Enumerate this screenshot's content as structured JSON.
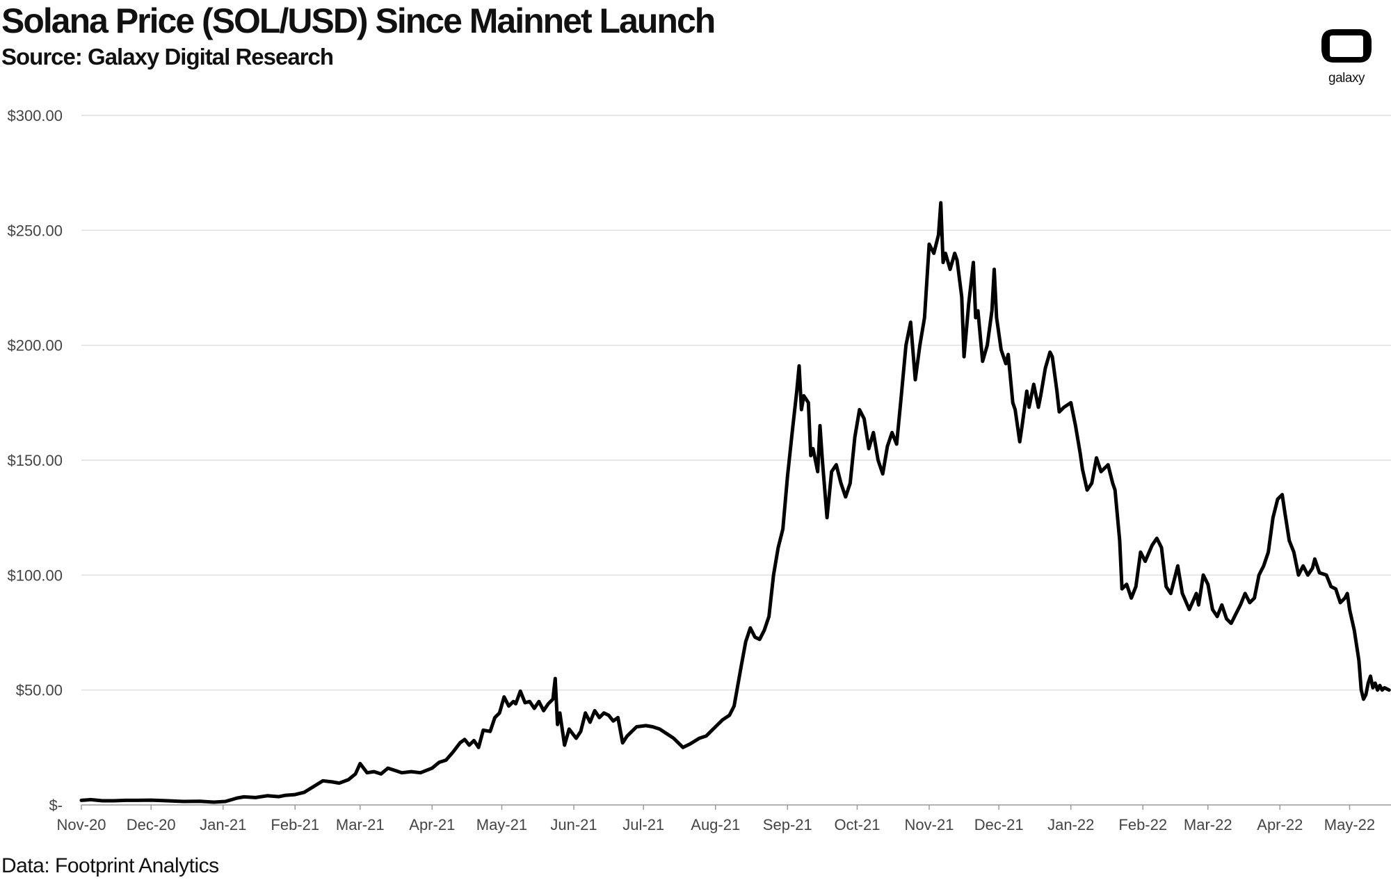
{
  "header": {
    "title": "Solana Price (SOL/USD) Since Mainnet Launch",
    "subtitle": "Source: Galaxy Digital Research"
  },
  "footer": {
    "note": "Data: Footprint Analytics"
  },
  "logo": {
    "text": "galaxy",
    "icon": "galaxy-logo-icon"
  },
  "colors": {
    "line": "#000000",
    "grid": "#d8d8d8",
    "text": "#444444"
  },
  "chart_data": {
    "type": "line",
    "title": "Solana Price (SOL/USD) Since Mainnet Launch",
    "subtitle": "Source: Galaxy Digital Research",
    "xlabel": "",
    "ylabel": "",
    "ylim": [
      0,
      300
    ],
    "grid": true,
    "legend": "none",
    "y_ticks": [
      {
        "value": 0,
        "label": "$-"
      },
      {
        "value": 50,
        "label": "$50.00"
      },
      {
        "value": 100,
        "label": "$100.00"
      },
      {
        "value": 150,
        "label": "$150.00"
      },
      {
        "value": 200,
        "label": "$200.00"
      },
      {
        "value": 250,
        "label": "$250.00"
      },
      {
        "value": 300,
        "label": "$300.00"
      }
    ],
    "x_ticks": [
      {
        "date": "2020-11-01",
        "label": "Nov-20"
      },
      {
        "date": "2020-12-01",
        "label": "Dec-20"
      },
      {
        "date": "2021-01-01",
        "label": "Jan-21"
      },
      {
        "date": "2021-02-01",
        "label": "Feb-21"
      },
      {
        "date": "2021-03-01",
        "label": "Mar-21"
      },
      {
        "date": "2021-04-01",
        "label": "Apr-21"
      },
      {
        "date": "2021-05-01",
        "label": "May-21"
      },
      {
        "date": "2021-06-01",
        "label": "Jun-21"
      },
      {
        "date": "2021-07-01",
        "label": "Jul-21"
      },
      {
        "date": "2021-08-01",
        "label": "Aug-21"
      },
      {
        "date": "2021-09-01",
        "label": "Sep-21"
      },
      {
        "date": "2021-10-01",
        "label": "Oct-21"
      },
      {
        "date": "2021-11-01",
        "label": "Nov-21"
      },
      {
        "date": "2021-12-01",
        "label": "Dec-21"
      },
      {
        "date": "2022-01-01",
        "label": "Jan-22"
      },
      {
        "date": "2022-02-01",
        "label": "Feb-22"
      },
      {
        "date": "2022-03-01",
        "label": "Mar-22"
      },
      {
        "date": "2022-04-01",
        "label": "Apr-22"
      },
      {
        "date": "2022-05-01",
        "label": "May-22"
      }
    ],
    "x_range": [
      "2020-11-01",
      "2022-05-18"
    ],
    "series": [
      {
        "points": [
          [
            "2020-11-01",
            2.0
          ],
          [
            "2020-11-05",
            2.3
          ],
          [
            "2020-11-10",
            1.8
          ],
          [
            "2020-11-15",
            1.8
          ],
          [
            "2020-11-20",
            2.0
          ],
          [
            "2020-11-25",
            2.0
          ],
          [
            "2020-12-01",
            2.1
          ],
          [
            "2020-12-08",
            1.8
          ],
          [
            "2020-12-15",
            1.5
          ],
          [
            "2020-12-22",
            1.6
          ],
          [
            "2020-12-28",
            1.2
          ],
          [
            "2021-01-02",
            1.5
          ],
          [
            "2021-01-07",
            3.0
          ],
          [
            "2021-01-10",
            3.5
          ],
          [
            "2021-01-15",
            3.2
          ],
          [
            "2021-01-20",
            4.0
          ],
          [
            "2021-01-25",
            3.6
          ],
          [
            "2021-01-28",
            4.2
          ],
          [
            "2021-02-01",
            4.5
          ],
          [
            "2021-02-05",
            5.5
          ],
          [
            "2021-02-09",
            8.0
          ],
          [
            "2021-02-13",
            10.5
          ],
          [
            "2021-02-17",
            10.0
          ],
          [
            "2021-02-20",
            9.5
          ],
          [
            "2021-02-24",
            11.0
          ],
          [
            "2021-02-27",
            13.5
          ],
          [
            "2021-03-01",
            18.0
          ],
          [
            "2021-03-04",
            14.0
          ],
          [
            "2021-03-07",
            14.5
          ],
          [
            "2021-03-10",
            13.5
          ],
          [
            "2021-03-13",
            16.0
          ],
          [
            "2021-03-16",
            15.0
          ],
          [
            "2021-03-19",
            14.0
          ],
          [
            "2021-03-23",
            14.5
          ],
          [
            "2021-03-27",
            14.0
          ],
          [
            "2021-04-01",
            16.0
          ],
          [
            "2021-04-04",
            18.5
          ],
          [
            "2021-04-07",
            19.5
          ],
          [
            "2021-04-10",
            23.0
          ],
          [
            "2021-04-13",
            27.0
          ],
          [
            "2021-04-15",
            28.5
          ],
          [
            "2021-04-17",
            26.0
          ],
          [
            "2021-04-19",
            28.0
          ],
          [
            "2021-04-21",
            25.0
          ],
          [
            "2021-04-23",
            32.5
          ],
          [
            "2021-04-26",
            32.0
          ],
          [
            "2021-04-28",
            38.0
          ],
          [
            "2021-04-30",
            40.0
          ],
          [
            "2021-05-02",
            47.0
          ],
          [
            "2021-05-04",
            43.0
          ],
          [
            "2021-05-06",
            45.0
          ],
          [
            "2021-05-07",
            44.0
          ],
          [
            "2021-05-09",
            49.5
          ],
          [
            "2021-05-11",
            44.5
          ],
          [
            "2021-05-13",
            45.0
          ],
          [
            "2021-05-15",
            42.0
          ],
          [
            "2021-05-17",
            45.0
          ],
          [
            "2021-05-19",
            41.0
          ],
          [
            "2021-05-21",
            44.0
          ],
          [
            "2021-05-23",
            46.0
          ],
          [
            "2021-05-24",
            55.0
          ],
          [
            "2021-05-25",
            35.0
          ],
          [
            "2021-05-26",
            40.0
          ],
          [
            "2021-05-28",
            26.0
          ],
          [
            "2021-05-30",
            33.0
          ],
          [
            "2021-06-02",
            29.0
          ],
          [
            "2021-06-04",
            32.0
          ],
          [
            "2021-06-06",
            40.0
          ],
          [
            "2021-06-08",
            36.0
          ],
          [
            "2021-06-10",
            41.0
          ],
          [
            "2021-06-12",
            38.0
          ],
          [
            "2021-06-14",
            40.0
          ],
          [
            "2021-06-16",
            39.0
          ],
          [
            "2021-06-18",
            36.5
          ],
          [
            "2021-06-20",
            38.0
          ],
          [
            "2021-06-22",
            27.0
          ],
          [
            "2021-06-24",
            30.0
          ],
          [
            "2021-06-26",
            32.0
          ],
          [
            "2021-06-28",
            34.0
          ],
          [
            "2021-07-02",
            34.5
          ],
          [
            "2021-07-05",
            34.0
          ],
          [
            "2021-07-08",
            33.0
          ],
          [
            "2021-07-11",
            31.0
          ],
          [
            "2021-07-14",
            29.0
          ],
          [
            "2021-07-18",
            25.0
          ],
          [
            "2021-07-21",
            26.5
          ],
          [
            "2021-07-25",
            29.0
          ],
          [
            "2021-07-28",
            30.0
          ],
          [
            "2021-08-01",
            34.0
          ],
          [
            "2021-08-04",
            37.0
          ],
          [
            "2021-08-07",
            39.0
          ],
          [
            "2021-08-09",
            43.0
          ],
          [
            "2021-08-12",
            60.0
          ],
          [
            "2021-08-14",
            71.0
          ],
          [
            "2021-08-16",
            77.0
          ],
          [
            "2021-08-18",
            73.0
          ],
          [
            "2021-08-20",
            72.0
          ],
          [
            "2021-08-22",
            76.0
          ],
          [
            "2021-08-24",
            82.0
          ],
          [
            "2021-08-26",
            100.0
          ],
          [
            "2021-08-28",
            112.0
          ],
          [
            "2021-08-30",
            120.0
          ],
          [
            "2021-09-01",
            143.0
          ],
          [
            "2021-09-03",
            162.0
          ],
          [
            "2021-09-05",
            180.0
          ],
          [
            "2021-09-06",
            191.0
          ],
          [
            "2021-09-07",
            172.0
          ],
          [
            "2021-09-08",
            178.0
          ],
          [
            "2021-09-10",
            175.0
          ],
          [
            "2021-09-11",
            152.0
          ],
          [
            "2021-09-12",
            155.0
          ],
          [
            "2021-09-14",
            145.0
          ],
          [
            "2021-09-15",
            165.0
          ],
          [
            "2021-09-16",
            150.0
          ],
          [
            "2021-09-18",
            125.0
          ],
          [
            "2021-09-20",
            145.0
          ],
          [
            "2021-09-22",
            148.0
          ],
          [
            "2021-09-24",
            140.0
          ],
          [
            "2021-09-26",
            134.0
          ],
          [
            "2021-09-28",
            140.0
          ],
          [
            "2021-09-30",
            160.0
          ],
          [
            "2021-10-02",
            172.0
          ],
          [
            "2021-10-04",
            168.0
          ],
          [
            "2021-10-06",
            155.0
          ],
          [
            "2021-10-08",
            162.0
          ],
          [
            "2021-10-10",
            150.0
          ],
          [
            "2021-10-12",
            144.0
          ],
          [
            "2021-10-14",
            156.0
          ],
          [
            "2021-10-16",
            162.0
          ],
          [
            "2021-10-18",
            157.0
          ],
          [
            "2021-10-20",
            178.0
          ],
          [
            "2021-10-22",
            200.0
          ],
          [
            "2021-10-24",
            210.0
          ],
          [
            "2021-10-26",
            185.0
          ],
          [
            "2021-10-28",
            200.0
          ],
          [
            "2021-10-30",
            212.0
          ],
          [
            "2021-11-01",
            244.0
          ],
          [
            "2021-11-03",
            240.0
          ],
          [
            "2021-11-05",
            248.0
          ],
          [
            "2021-11-06",
            262.0
          ],
          [
            "2021-11-07",
            236.0
          ],
          [
            "2021-11-08",
            240.0
          ],
          [
            "2021-11-10",
            233.0
          ],
          [
            "2021-11-12",
            240.0
          ],
          [
            "2021-11-13",
            237.0
          ],
          [
            "2021-11-15",
            221.0
          ],
          [
            "2021-11-16",
            195.0
          ],
          [
            "2021-11-18",
            218.0
          ],
          [
            "2021-11-20",
            236.0
          ],
          [
            "2021-11-21",
            212.0
          ],
          [
            "2021-11-22",
            215.0
          ],
          [
            "2021-11-24",
            193.0
          ],
          [
            "2021-11-26",
            200.0
          ],
          [
            "2021-11-28",
            215.0
          ],
          [
            "2021-11-29",
            233.0
          ],
          [
            "2021-11-30",
            212.0
          ],
          [
            "2021-12-02",
            198.0
          ],
          [
            "2021-12-04",
            192.0
          ],
          [
            "2021-12-05",
            196.0
          ],
          [
            "2021-12-07",
            175.0
          ],
          [
            "2021-12-08",
            172.0
          ],
          [
            "2021-12-10",
            158.0
          ],
          [
            "2021-12-11",
            165.0
          ],
          [
            "2021-12-13",
            180.0
          ],
          [
            "2021-12-14",
            173.0
          ],
          [
            "2021-12-16",
            183.0
          ],
          [
            "2021-12-18",
            173.0
          ],
          [
            "2021-12-19",
            178.0
          ],
          [
            "2021-12-21",
            190.0
          ],
          [
            "2021-12-23",
            197.0
          ],
          [
            "2021-12-24",
            195.0
          ],
          [
            "2021-12-26",
            180.0
          ],
          [
            "2021-12-27",
            171.0
          ],
          [
            "2021-12-29",
            173.0
          ],
          [
            "2022-01-01",
            175.0
          ],
          [
            "2022-01-03",
            165.0
          ],
          [
            "2022-01-05",
            153.0
          ],
          [
            "2022-01-06",
            146.0
          ],
          [
            "2022-01-08",
            137.0
          ],
          [
            "2022-01-10",
            140.0
          ],
          [
            "2022-01-12",
            151.0
          ],
          [
            "2022-01-14",
            145.0
          ],
          [
            "2022-01-17",
            148.0
          ],
          [
            "2022-01-19",
            140.0
          ],
          [
            "2022-01-20",
            137.0
          ],
          [
            "2022-01-22",
            115.0
          ],
          [
            "2022-01-23",
            94.0
          ],
          [
            "2022-01-25",
            96.0
          ],
          [
            "2022-01-27",
            90.0
          ],
          [
            "2022-01-29",
            95.0
          ],
          [
            "2022-01-31",
            110.0
          ],
          [
            "2022-02-02",
            106.0
          ],
          [
            "2022-02-05",
            113.0
          ],
          [
            "2022-02-07",
            116.0
          ],
          [
            "2022-02-09",
            112.0
          ],
          [
            "2022-02-11",
            95.0
          ],
          [
            "2022-02-13",
            92.0
          ],
          [
            "2022-02-16",
            104.0
          ],
          [
            "2022-02-18",
            92.0
          ],
          [
            "2022-02-21",
            85.0
          ],
          [
            "2022-02-24",
            92.0
          ],
          [
            "2022-02-25",
            87.0
          ],
          [
            "2022-02-27",
            100.0
          ],
          [
            "2022-03-01",
            96.0
          ],
          [
            "2022-03-03",
            85.0
          ],
          [
            "2022-03-05",
            82.0
          ],
          [
            "2022-03-07",
            87.0
          ],
          [
            "2022-03-09",
            81.0
          ],
          [
            "2022-03-11",
            79.0
          ],
          [
            "2022-03-13",
            83.0
          ],
          [
            "2022-03-15",
            87.0
          ],
          [
            "2022-03-17",
            92.0
          ],
          [
            "2022-03-19",
            88.0
          ],
          [
            "2022-03-21",
            90.0
          ],
          [
            "2022-03-23",
            100.0
          ],
          [
            "2022-03-25",
            104.0
          ],
          [
            "2022-03-27",
            110.0
          ],
          [
            "2022-03-29",
            125.0
          ],
          [
            "2022-03-31",
            133.0
          ],
          [
            "2022-04-02",
            135.0
          ],
          [
            "2022-04-03",
            128.0
          ],
          [
            "2022-04-05",
            115.0
          ],
          [
            "2022-04-07",
            110.0
          ],
          [
            "2022-04-09",
            100.0
          ],
          [
            "2022-04-11",
            104.0
          ],
          [
            "2022-04-13",
            100.0
          ],
          [
            "2022-04-15",
            103.0
          ],
          [
            "2022-04-16",
            107.0
          ],
          [
            "2022-04-18",
            101.0
          ],
          [
            "2022-04-21",
            100.0
          ],
          [
            "2022-04-23",
            95.0
          ],
          [
            "2022-04-25",
            94.0
          ],
          [
            "2022-04-27",
            88.0
          ],
          [
            "2022-04-29",
            90.0
          ],
          [
            "2022-04-30",
            92.0
          ],
          [
            "2022-05-01",
            85.0
          ],
          [
            "2022-05-03",
            76.0
          ],
          [
            "2022-05-05",
            63.0
          ],
          [
            "2022-05-06",
            50.0
          ],
          [
            "2022-05-07",
            46.0
          ],
          [
            "2022-05-08",
            48.0
          ],
          [
            "2022-05-09",
            53.0
          ],
          [
            "2022-05-10",
            56.0
          ],
          [
            "2022-05-11",
            51.0
          ],
          [
            "2022-05-12",
            53.0
          ],
          [
            "2022-05-13",
            50.0
          ],
          [
            "2022-05-14",
            52.0
          ],
          [
            "2022-05-15",
            50.0
          ],
          [
            "2022-05-16",
            51.0
          ],
          [
            "2022-05-18",
            50.0
          ]
        ]
      }
    ]
  }
}
